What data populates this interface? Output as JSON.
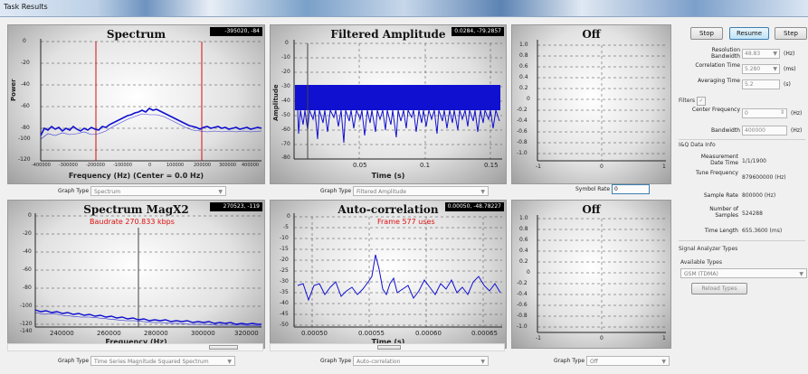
{
  "window": {
    "title": "Task Results"
  },
  "colors": {
    "trace": "#1010d0",
    "marker": "#d01010",
    "readout_bg": "#000000",
    "accent_button": "#3c7fb1"
  },
  "panels": {
    "spectrum": {
      "title": "Spectrum",
      "readout": "-395020, -84",
      "xlabel": "Frequency (Hz) (Center = 0.0 Hz)",
      "ylabel": "Power",
      "yticks": [
        "0",
        "-20",
        "-40",
        "-60",
        "-80",
        "-100",
        "-120"
      ],
      "xticks": [
        "-400000",
        "-300000",
        "-200000",
        "-100000",
        "0",
        "100000",
        "200000",
        "300000",
        "400000"
      ],
      "graph_type_label": "Graph Type",
      "graph_type_value": "Spectrum"
    },
    "filtered": {
      "title": "Filtered Amplitude",
      "readout": "0.0284, -79.2857",
      "xlabel": "Time (s)",
      "ylabel": "Amplitude",
      "yticks": [
        "0",
        "-10",
        "-20",
        "-30",
        "-40",
        "-50",
        "-60",
        "-70",
        "-80"
      ],
      "xticks": [
        "0.05",
        "0.1",
        "0.15"
      ],
      "graph_type_label": "Graph Type",
      "graph_type_value": "Filtered Amplitude"
    },
    "off1": {
      "title": "Off",
      "yticks": [
        "1.0",
        "0.8",
        "0.6",
        "0.4",
        "0.2",
        "0",
        "-0.2",
        "-0.4",
        "-0.6",
        "-0.8",
        "-1.0"
      ],
      "xticks": [
        "-1",
        "0",
        "1"
      ],
      "symbol_rate_label": "Symbol Rate",
      "symbol_rate_value": "0"
    },
    "magx2": {
      "title": "Spectrum MagX2",
      "readout": "270523, -119",
      "annotation": "Baudrate 270.833 kbps",
      "xlabel": "Frequency (Hz)",
      "yticks": [
        "0",
        "-20",
        "-40",
        "-60",
        "-80",
        "-100",
        "-120",
        "-140"
      ],
      "xticks": [
        "240000",
        "260000",
        "280000",
        "300000",
        "320000"
      ],
      "graph_type_label": "Graph Type",
      "graph_type_value": "Time Series Magnitude Squared Spectrum"
    },
    "autocorr": {
      "title": "Auto-correlation",
      "readout": "0.00050, -48.78227",
      "annotation": "Frame 577 uses",
      "xlabel": "Time (s)",
      "yticks": [
        "0",
        "-5",
        "-10",
        "-15",
        "-20",
        "-25",
        "-30",
        "-35",
        "-40",
        "-45",
        "-50"
      ],
      "xticks": [
        "0.00050",
        "0.00055",
        "0.00060",
        "0.00065"
      ],
      "graph_type_label": "Graph Type",
      "graph_type_value": "Auto-correlation"
    },
    "off2": {
      "title": "Off",
      "yticks": [
        "1.0",
        "0.8",
        "0.6",
        "0.4",
        "0.2",
        "0",
        "-0.2",
        "-0.4",
        "-0.6",
        "-0.8",
        "-1.0"
      ],
      "xticks": [
        "-1",
        "0",
        "1"
      ],
      "graph_type_label": "Graph Type",
      "graph_type_value": "Off"
    }
  },
  "controls": {
    "stop": "Stop",
    "resume": "Resume",
    "step": "Step",
    "resolution_bandwidth_label": "Resolution Bandwidth",
    "resolution_bandwidth_value": "48.83",
    "resolution_bandwidth_unit": "(Hz)",
    "correlation_time_label": "Correlation Time",
    "correlation_time_value": "5.280",
    "correlation_time_unit": "(ms)",
    "averaging_time_label": "Averaging Time",
    "averaging_time_value": "5.2",
    "averaging_time_unit": "(s)",
    "filters_label": "Filters",
    "center_frequency_label": "Center Frequency",
    "center_frequency_value": "0",
    "center_frequency_unit": "(Hz)",
    "bandwidth_label": "Bandwidth",
    "bandwidth_value": "400000",
    "bandwidth_unit": "(Hz)"
  },
  "iq_info": {
    "section": "I&Q Data Info",
    "measurement_date_label": "Measurement Date Time",
    "measurement_date_value": "1/1/1900",
    "tune_frequency_label": "Tune Frequency",
    "tune_frequency_value": "879600000 (Hz)",
    "sample_rate_label": "Sample Rate",
    "sample_rate_value": "800000 (Hz)",
    "num_samples_label": "Number of Samples",
    "num_samples_value": "524288",
    "time_length_label": "Time Length",
    "time_length_value": "655.3600 (ms)"
  },
  "analyzer": {
    "section": "Signal Analyzer Types",
    "available_label": "Available Types",
    "available_value": "GSM (TDMA)",
    "reload": "Reload Types"
  }
}
